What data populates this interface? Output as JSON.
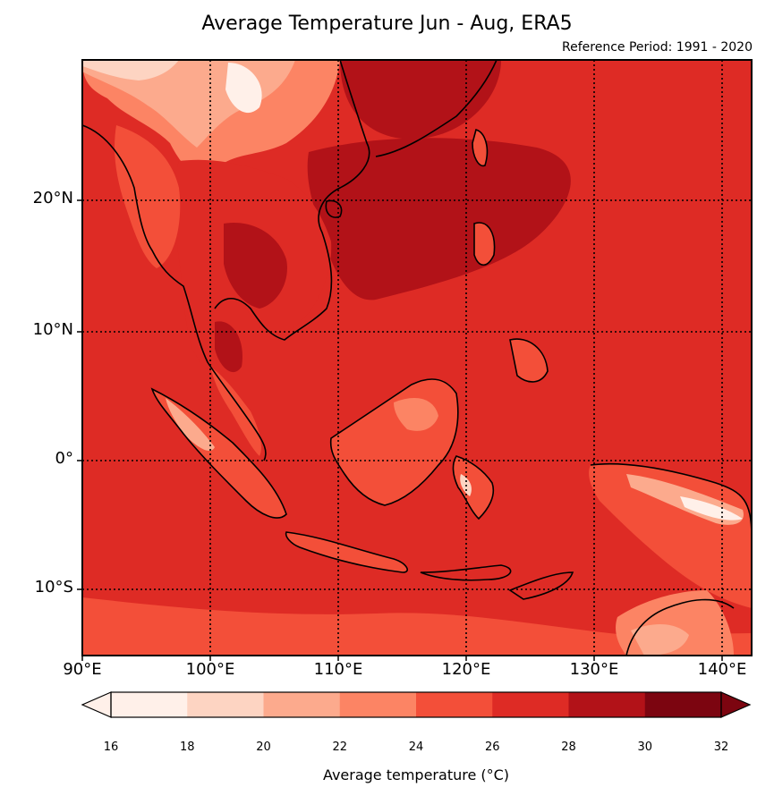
{
  "title": "Average Temperature Jun - Aug, ERA5",
  "subtitle": "Reference Period: 1991 - 2020",
  "map": {
    "lon_range": [
      90,
      142
    ],
    "lat_range": [
      -15,
      31
    ],
    "lat_labels": [
      "20°N",
      "10°N",
      "0°",
      "10°S"
    ],
    "lon_labels": [
      "90°E",
      "100°E",
      "110°E",
      "120°E",
      "130°E",
      "140°E"
    ],
    "gridlines": "dotted"
  },
  "colorbar": {
    "ticks": [
      "16",
      "18",
      "20",
      "22",
      "24",
      "26",
      "28",
      "30",
      "32"
    ],
    "colors": [
      "#fff0e9",
      "#fdd4c2",
      "#fcaa8d",
      "#fc8464",
      "#f34f39",
      "#de2b25",
      "#b21218",
      "#7c0510"
    ],
    "extend": "both",
    "label": "Average temperature (°C)"
  }
}
